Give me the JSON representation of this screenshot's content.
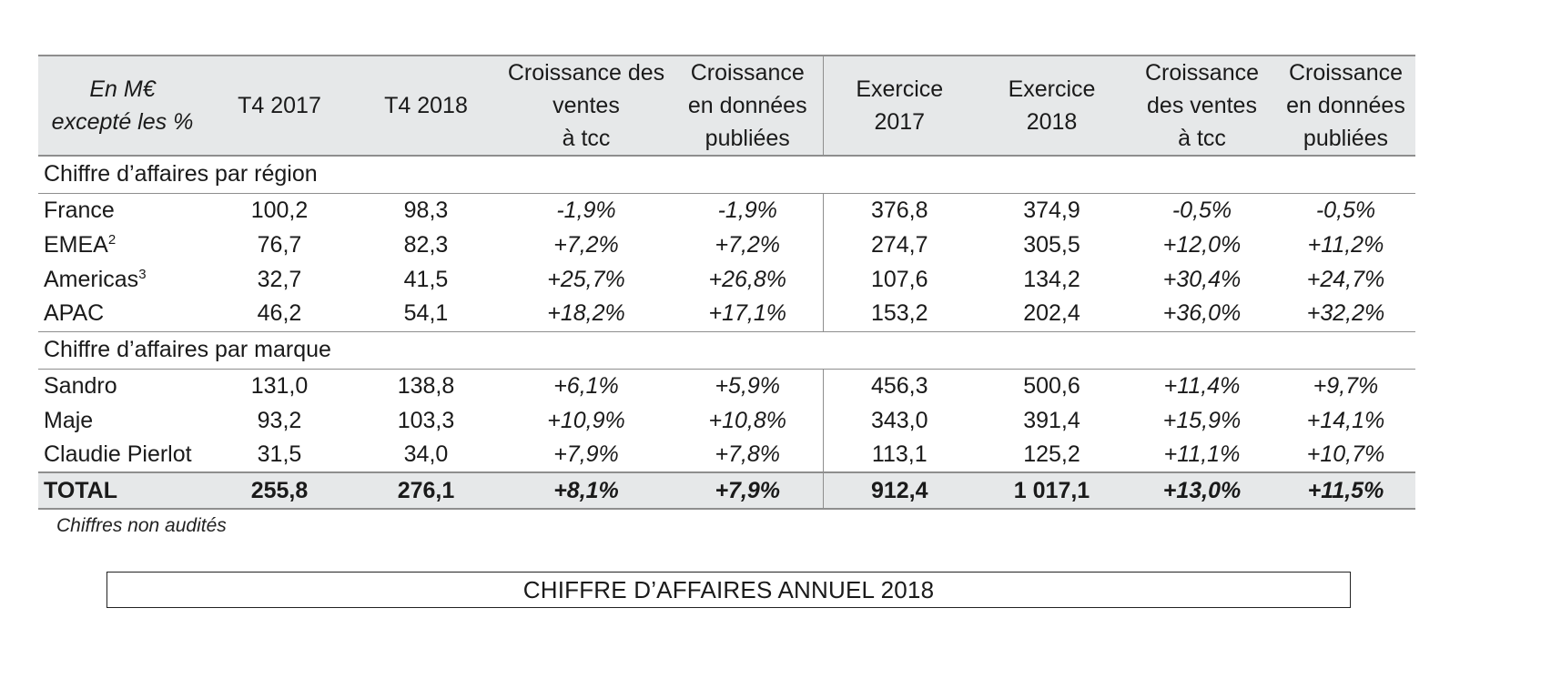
{
  "header": {
    "unit_line1": "En M€",
    "unit_line2": "excepté les %",
    "t4_2017": "T4 2017",
    "t4_2018": "T4 2018",
    "growth_cc_l1": "Croissance des",
    "growth_cc_l2": "ventes",
    "growth_cc_l3": "à tcc",
    "growth_rep_l1": "Croissance",
    "growth_rep_l2": "en données",
    "growth_rep_l3": "publiées",
    "fy2017_l1": "Exercice",
    "fy2017_l2": "2017",
    "fy2018_l1": "Exercice",
    "fy2018_l2": "2018",
    "fy_growth_cc_l1": "Croissance",
    "fy_growth_cc_l2": "des ventes",
    "fy_growth_cc_l3": "à tcc",
    "fy_growth_rep_l1": "Croissance",
    "fy_growth_rep_l2": "en données",
    "fy_growth_rep_l3": "publiées"
  },
  "sections": {
    "region": "Chiffre d’affaires par région",
    "brand": "Chiffre d’affaires par marque"
  },
  "regions": [
    {
      "label": "France",
      "sup": "",
      "values": [
        "100,2",
        "98,3",
        "-1,9%",
        "-1,9%",
        "376,8",
        "374,9",
        "-0,5%",
        "-0,5%"
      ]
    },
    {
      "label": "EMEA",
      "sup": "2",
      "values": [
        "76,7",
        "82,3",
        "+7,2%",
        "+7,2%",
        "274,7",
        "305,5",
        "+12,0%",
        "+11,2%"
      ]
    },
    {
      "label": "Americas",
      "sup": "3",
      "values": [
        "32,7",
        "41,5",
        "+25,7%",
        "+26,8%",
        "107,6",
        "134,2",
        "+30,4%",
        "+24,7%"
      ]
    },
    {
      "label": "APAC",
      "sup": "",
      "values": [
        "46,2",
        "54,1",
        "+18,2%",
        "+17,1%",
        "153,2",
        "202,4",
        "+36,0%",
        "+32,2%"
      ]
    }
  ],
  "brands": [
    {
      "label": "Sandro",
      "values": [
        "131,0",
        "138,8",
        "+6,1%",
        "+5,9%",
        "456,3",
        "500,6",
        "+11,4%",
        "+9,7%"
      ]
    },
    {
      "label": "Maje",
      "values": [
        "93,2",
        "103,3",
        "+10,9%",
        "+10,8%",
        "343,0",
        "391,4",
        "+15,9%",
        "+14,1%"
      ]
    },
    {
      "label": "Claudie Pierlot",
      "values": [
        "31,5",
        "34,0",
        "+7,9%",
        "+7,8%",
        "113,1",
        "125,2",
        "+11,1%",
        "+10,7%"
      ]
    }
  ],
  "total": {
    "label": "TOTAL",
    "values": [
      "255,8",
      "276,1",
      "+8,1%",
      "+7,9%",
      "912,4",
      "1 017,1",
      "+13,0%",
      "+11,5%"
    ]
  },
  "footnote": "Chiffres non audités",
  "banner": "CHIFFRE D’AFFAIRES ANNUEL 2018"
}
